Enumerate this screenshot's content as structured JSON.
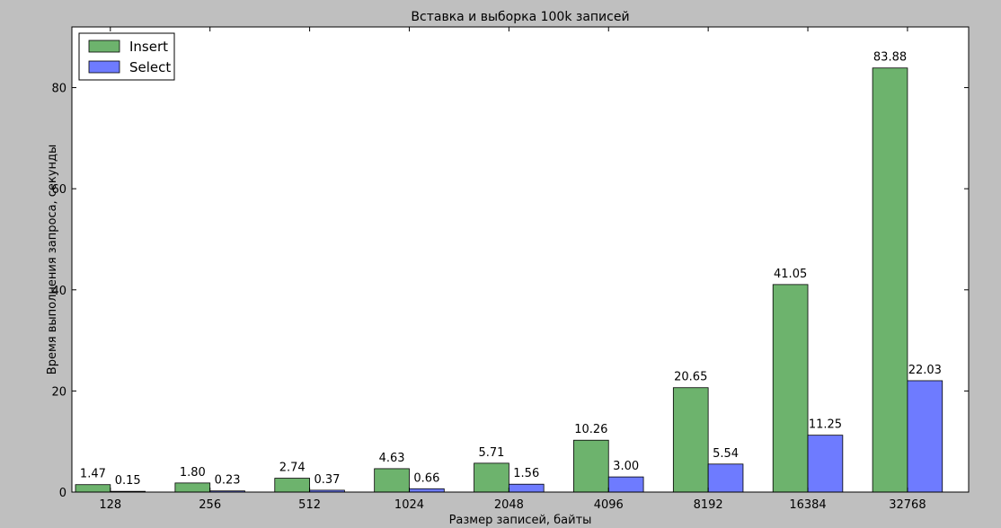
{
  "chart_data": {
    "type": "bar",
    "title": "Вставка и выборка 100k записей",
    "xlabel": "Размер записей, байты",
    "ylabel": "Время выполнения запроса, секунды",
    "categories": [
      "128",
      "256",
      "512",
      "1024",
      "2048",
      "4096",
      "8192",
      "16384",
      "32768"
    ],
    "series": [
      {
        "name": "Insert",
        "color": "#6db36d",
        "values": [
          1.47,
          1.8,
          2.74,
          4.63,
          5.71,
          10.26,
          20.65,
          41.05,
          83.88
        ],
        "labels": [
          "1.47",
          "1.80",
          "2.74",
          "4.63",
          "5.71",
          "10.26",
          "20.65",
          "41.05",
          "83.88"
        ]
      },
      {
        "name": "Select",
        "color": "#6e7bff",
        "values": [
          0.15,
          0.23,
          0.37,
          0.66,
          1.56,
          3.0,
          5.54,
          11.25,
          22.03
        ],
        "labels": [
          "0.15",
          "0.23",
          "0.37",
          "0.66",
          "1.56",
          "3.00",
          "5.54",
          "11.25",
          "22.03"
        ]
      }
    ],
    "ylim": [
      0,
      92
    ],
    "yticks": [
      0,
      20,
      40,
      60,
      80
    ],
    "grid": false,
    "legend_position": "top-left"
  }
}
